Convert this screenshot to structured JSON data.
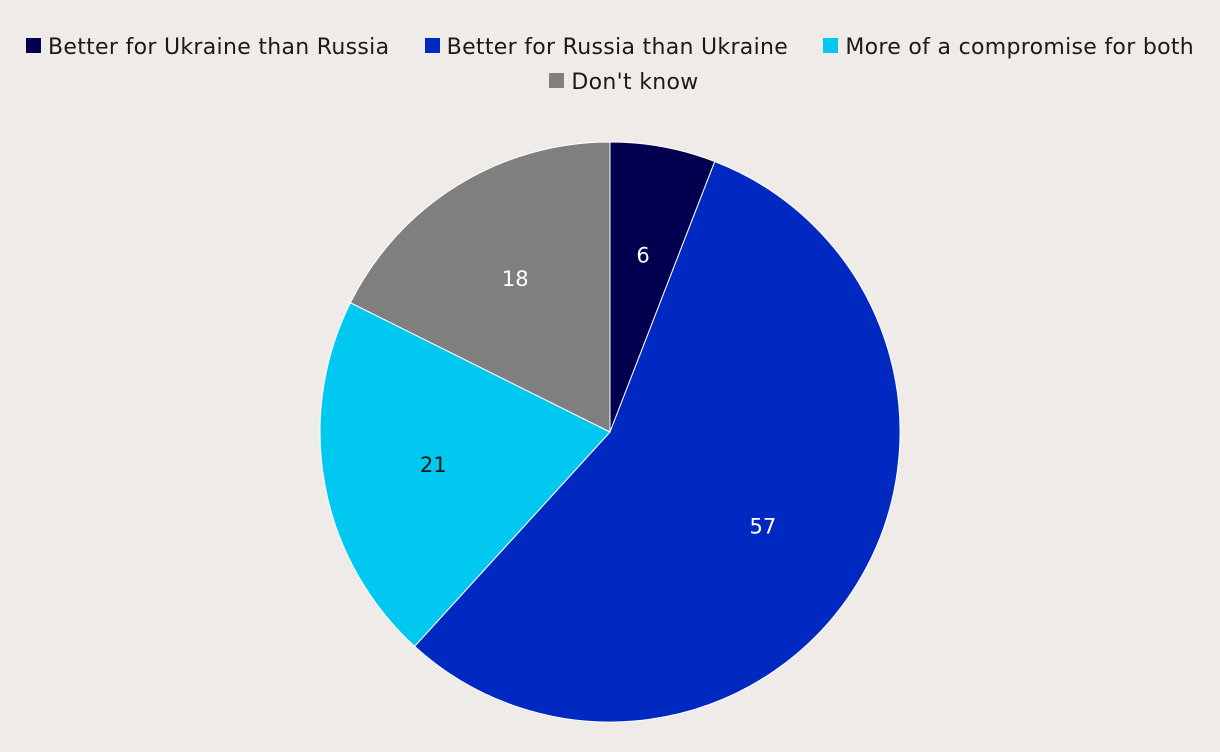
{
  "chart_data": {
    "type": "pie",
    "title": "",
    "categories": [
      "Better for Ukraine than Russia",
      "Better for Russia than Ukraine",
      "More of a compromise for both",
      "Don't know"
    ],
    "values": [
      6,
      57,
      21,
      18
    ],
    "colors": [
      "#03014f",
      "#0029c1",
      "#00c8f1",
      "#7f7f7f"
    ],
    "label_colors": [
      "#ffffff",
      "#ffffff",
      "#1a1a1a",
      "#ffffff"
    ],
    "legend_position": "top"
  }
}
